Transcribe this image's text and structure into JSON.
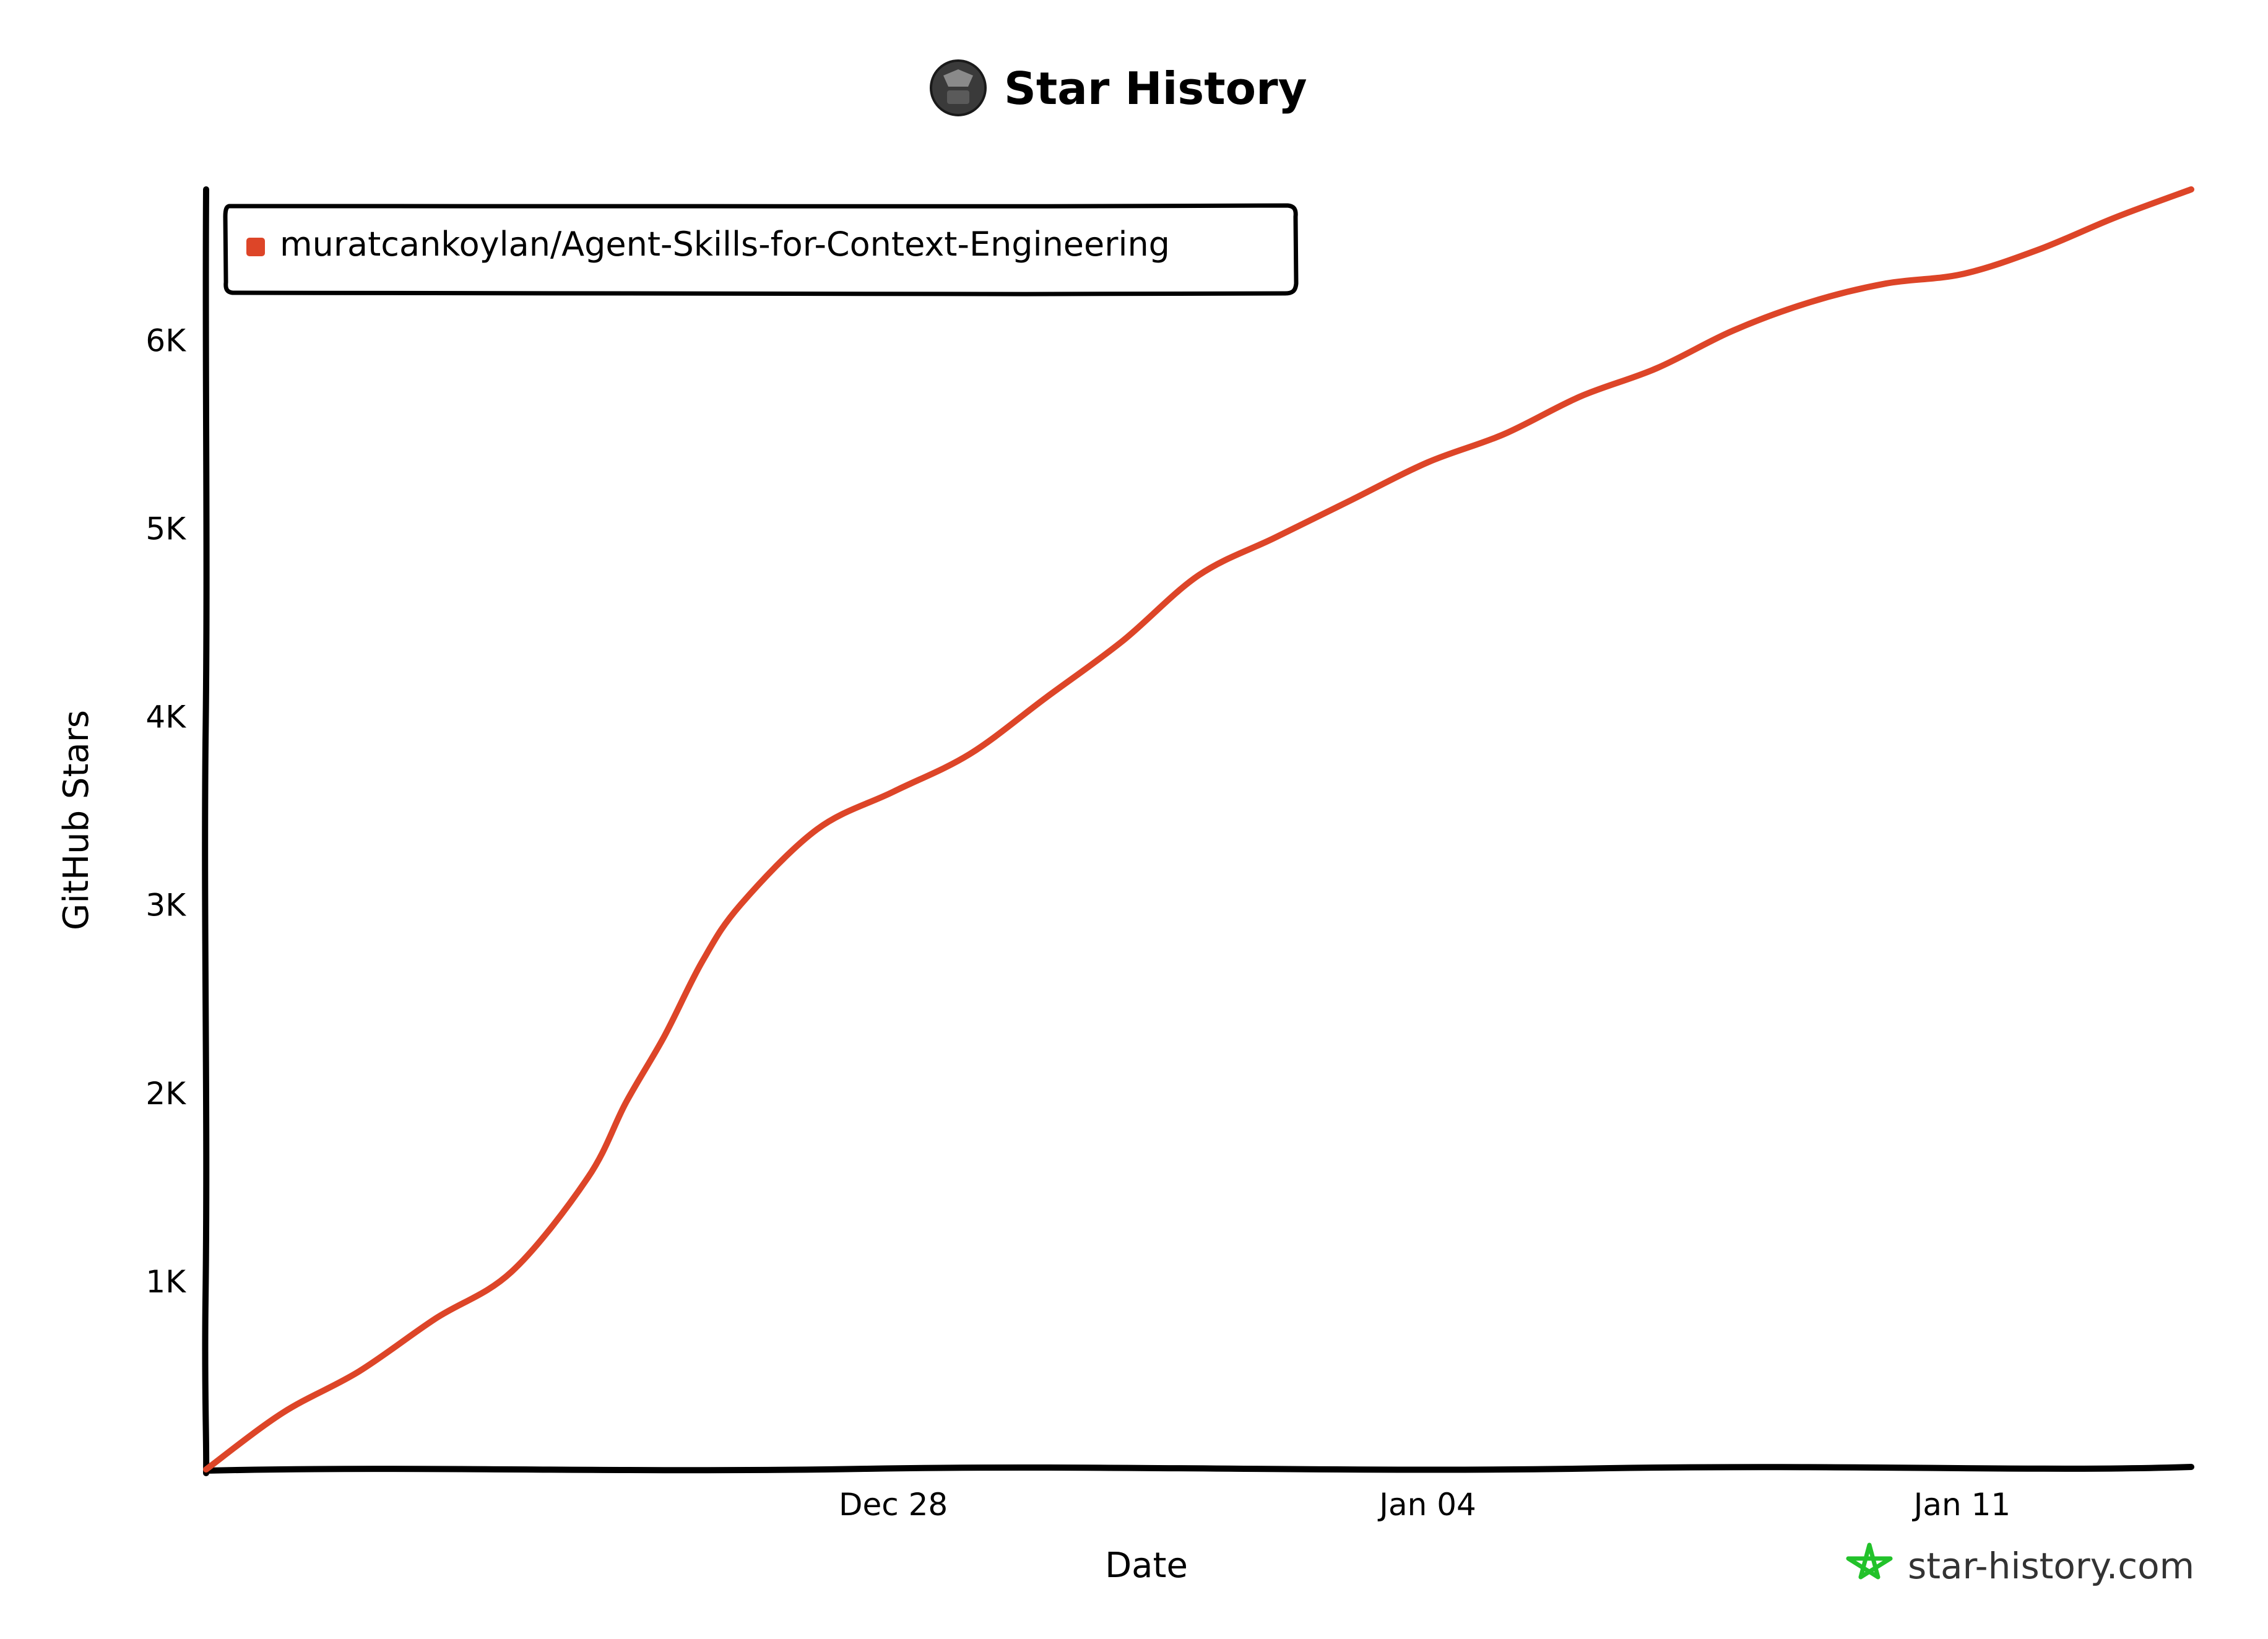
{
  "title": "Star History",
  "watermark": "star-history.com",
  "colors": {
    "series": "#dd4528",
    "axis": "#000000",
    "brand_icon": "#22c22a"
  },
  "icons": {
    "title_avatar": "repo-owner-avatar-icon",
    "brand": "star-outline-icon"
  },
  "chart_data": {
    "type": "line",
    "title": "Star History",
    "xlabel": "Date",
    "ylabel": "GitHub Stars",
    "x_range": [
      "2025-12-19",
      "2026-01-14"
    ],
    "ylim": [
      0,
      6800
    ],
    "x_ticks": [
      {
        "date": "2025-12-28",
        "label": "Dec 28"
      },
      {
        "date": "2026-01-04",
        "label": "Jan 04"
      },
      {
        "date": "2026-01-11",
        "label": "Jan 11"
      }
    ],
    "y_ticks": [
      {
        "value": 1000,
        "label": "1K"
      },
      {
        "value": 2000,
        "label": "2K"
      },
      {
        "value": 3000,
        "label": "3K"
      },
      {
        "value": 4000,
        "label": "4K"
      },
      {
        "value": 5000,
        "label": "5K"
      },
      {
        "value": 6000,
        "label": "6K"
      }
    ],
    "grid": false,
    "legend_position": "top-left",
    "series": [
      {
        "name": "muratcankoylan/Agent-Skills-for-Context-Engineering",
        "color": "#dd4528",
        "points": [
          [
            "2025-12-19",
            0
          ],
          [
            "2025-12-20",
            300
          ],
          [
            "2025-12-21",
            520
          ],
          [
            "2025-12-22",
            800
          ],
          [
            "2025-12-23",
            1050
          ],
          [
            "2025-12-24",
            1550
          ],
          [
            "2025-12-24T12:00",
            1950
          ],
          [
            "2025-12-25",
            2300
          ],
          [
            "2025-12-25T12:00",
            2700
          ],
          [
            "2025-12-26",
            3000
          ],
          [
            "2025-12-27",
            3400
          ],
          [
            "2025-12-28",
            3600
          ],
          [
            "2025-12-29",
            3800
          ],
          [
            "2025-12-30",
            4100
          ],
          [
            "2025-12-31",
            4400
          ],
          [
            "2026-01-01",
            4750
          ],
          [
            "2026-01-02",
            4950
          ],
          [
            "2026-01-03",
            5150
          ],
          [
            "2026-01-04",
            5350
          ],
          [
            "2026-01-05",
            5500
          ],
          [
            "2026-01-06",
            5700
          ],
          [
            "2026-01-07",
            5850
          ],
          [
            "2026-01-08",
            6050
          ],
          [
            "2026-01-09",
            6200
          ],
          [
            "2026-01-10",
            6300
          ],
          [
            "2026-01-11",
            6350
          ],
          [
            "2026-01-12",
            6480
          ],
          [
            "2026-01-13",
            6650
          ],
          [
            "2026-01-14",
            6800
          ]
        ]
      }
    ]
  }
}
